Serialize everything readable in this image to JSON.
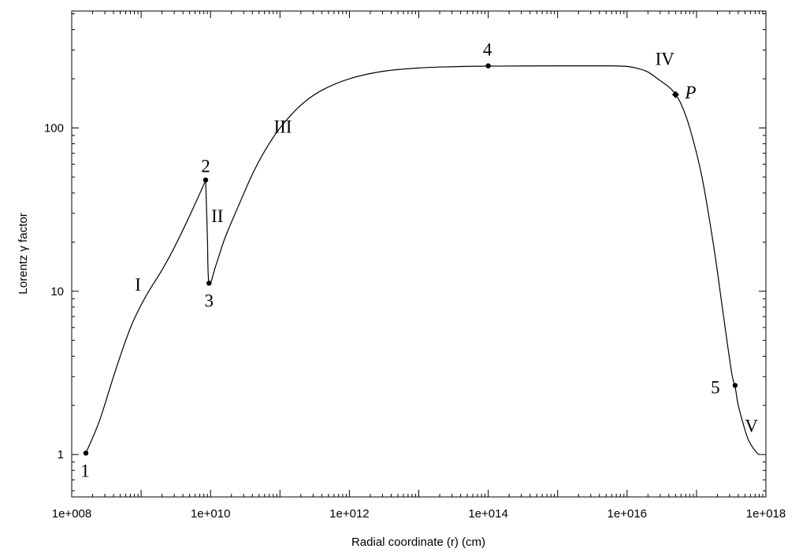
{
  "chart_data": {
    "type": "line",
    "title": "",
    "xlabel": "Radial coordinate (r) (cm)",
    "ylabel": "Lorentz γ factor",
    "x_scale": "log",
    "y_scale": "log",
    "xlim": [
      100000000.0,
      1e+18
    ],
    "ylim": [
      0.55,
      520
    ],
    "grid": false,
    "x_ticks": [
      {
        "value": 100000000.0,
        "label": "1e+008"
      },
      {
        "value": 10000000000.0,
        "label": "1e+010"
      },
      {
        "value": 1000000000000.0,
        "label": "1e+012"
      },
      {
        "value": 100000000000000.0,
        "label": "1e+014"
      },
      {
        "value": 1e+16,
        "label": "1e+016"
      },
      {
        "value": 1e+18,
        "label": "1e+018"
      }
    ],
    "y_ticks": [
      {
        "value": 1,
        "label": "1"
      },
      {
        "value": 10,
        "label": "10"
      },
      {
        "value": 100,
        "label": "100"
      }
    ],
    "curve": [
      [
        160000000.0,
        1.02
      ],
      [
        250000000.0,
        1.6
      ],
      [
        400000000.0,
        3.0
      ],
      [
        600000000.0,
        5.0
      ],
      [
        800000000.0,
        6.8
      ],
      [
        1200000000.0,
        9.5
      ],
      [
        2000000000.0,
        13.5
      ],
      [
        3000000000.0,
        18.5
      ],
      [
        5000000000.0,
        29
      ],
      [
        8000000000.0,
        45
      ],
      [
        8500000000.0,
        48
      ],
      [
        9000000000.0,
        22
      ],
      [
        9500000000.0,
        11.2
      ],
      [
        12000000000.0,
        14.5
      ],
      [
        16000000000.0,
        21
      ],
      [
        25000000000.0,
        33
      ],
      [
        40000000000.0,
        52
      ],
      [
        60000000000.0,
        72
      ],
      [
        100000000000.0,
        100
      ],
      [
        200000000000.0,
        138
      ],
      [
        400000000000.0,
        170
      ],
      [
        1000000000000.0,
        200
      ],
      [
        3000000000000.0,
        222
      ],
      [
        10000000000000.0,
        233
      ],
      [
        30000000000000.0,
        237
      ],
      [
        100000000000000.0,
        239
      ],
      [
        1000000000000000.0,
        240
      ],
      [
        5000000000000000.0,
        240
      ],
      [
        1e+16,
        238
      ],
      [
        1.5e+16,
        230
      ],
      [
        2e+16,
        220
      ],
      [
        3e+16,
        195
      ],
      [
        4.2e+16,
        175
      ],
      [
        5e+16,
        160
      ],
      [
        6e+16,
        140
      ],
      [
        8e+16,
        100
      ],
      [
        1.2e+17,
        50
      ],
      [
        1.8e+17,
        18
      ],
      [
        2.4e+17,
        7.5
      ],
      [
        3.2e+17,
        3.2
      ],
      [
        3.6e+17,
        2.6
      ],
      [
        4e+17,
        2.0
      ],
      [
        4.8e+17,
        1.5
      ],
      [
        5.5e+17,
        1.25
      ],
      [
        6.5e+17,
        1.1
      ],
      [
        7.5e+17,
        1.02
      ],
      [
        8e+17,
        1.0
      ]
    ],
    "points": [
      {
        "label": "1",
        "x": 160000000.0,
        "y": 1.02,
        "marker": "circle"
      },
      {
        "label": "2",
        "x": 8500000000.0,
        "y": 48,
        "marker": "circle"
      },
      {
        "label": "3",
        "x": 9500000000.0,
        "y": 11.2,
        "marker": "circle"
      },
      {
        "label": "4",
        "x": 100000000000000.0,
        "y": 240,
        "marker": "circle"
      },
      {
        "label": "P",
        "x": 5e+16,
        "y": 160,
        "marker": "diamond"
      },
      {
        "label": "5",
        "x": 3.6e+17,
        "y": 2.65,
        "marker": "circle"
      }
    ],
    "annotations": [
      {
        "text": "I",
        "x": 900000000.0,
        "y": 11
      },
      {
        "text": "II",
        "x": 12500000000.0,
        "y": 29
      },
      {
        "text": "III",
        "x": 110000000000.0,
        "y": 102
      },
      {
        "text": "IV",
        "x": 3.5e+16,
        "y": 265
      },
      {
        "text": "V",
        "x": 6.2e+17,
        "y": 1.5
      }
    ]
  }
}
